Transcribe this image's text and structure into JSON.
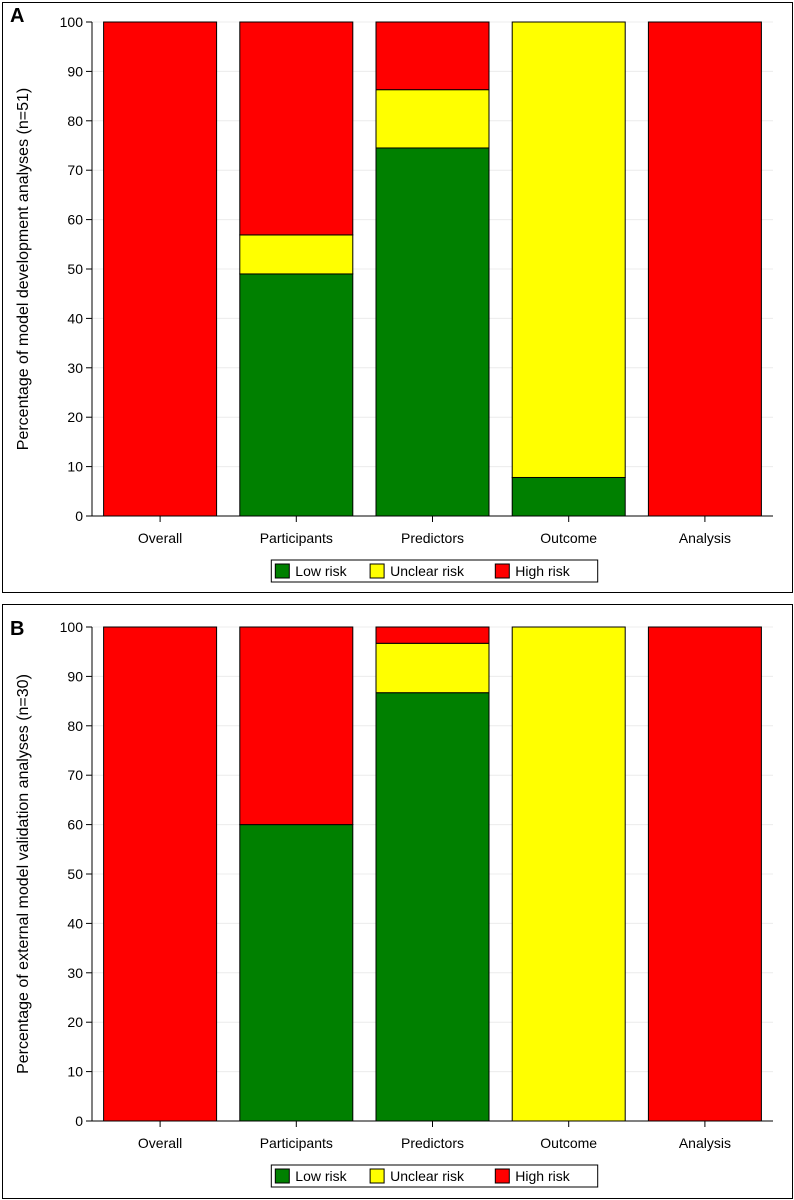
{
  "chart_data": [
    {
      "panel_label": "A",
      "type": "bar",
      "stacked": true,
      "ylabel": "Percentage of model development analyses (n=51)",
      "ylim": [
        0,
        100
      ],
      "ytick_labels": [
        "0",
        "10",
        "20",
        "30",
        "40",
        "50",
        "60",
        "70",
        "80",
        "90",
        "100"
      ],
      "categories": [
        "Overall",
        "Participants",
        "Predictors",
        "Outcome",
        "Analysis"
      ],
      "series": [
        {
          "name": "Low risk",
          "color": "#008000",
          "values": [
            0,
            49,
            74.5,
            7.8,
            0
          ]
        },
        {
          "name": "Unclear risk",
          "color": "#ffff00",
          "values": [
            0,
            7.9,
            11.8,
            92.2,
            0
          ]
        },
        {
          "name": "High risk",
          "color": "#ff0000",
          "values": [
            100,
            43.1,
            13.7,
            0,
            100
          ]
        }
      ],
      "legend": [
        "Low risk",
        "Unclear risk",
        "High risk"
      ],
      "legend_position": "bottom"
    },
    {
      "panel_label": "B",
      "type": "bar",
      "stacked": true,
      "ylabel": "Percentage of external model validation analyses (n=30)",
      "ylim": [
        0,
        100
      ],
      "ytick_labels": [
        "0",
        "10",
        "20",
        "30",
        "40",
        "50",
        "60",
        "70",
        "80",
        "90",
        "100"
      ],
      "categories": [
        "Overall",
        "Participants",
        "Predictors",
        "Outcome",
        "Analysis"
      ],
      "series": [
        {
          "name": "Low risk",
          "color": "#008000",
          "values": [
            0,
            60,
            86.7,
            0,
            0
          ]
        },
        {
          "name": "Unclear risk",
          "color": "#ffff00",
          "values": [
            0,
            0,
            10,
            100,
            0
          ]
        },
        {
          "name": "High risk",
          "color": "#ff0000",
          "values": [
            100,
            40,
            3.3,
            0,
            100
          ]
        }
      ],
      "legend": [
        "Low risk",
        "Unclear risk",
        "High risk"
      ],
      "legend_position": "bottom"
    }
  ]
}
